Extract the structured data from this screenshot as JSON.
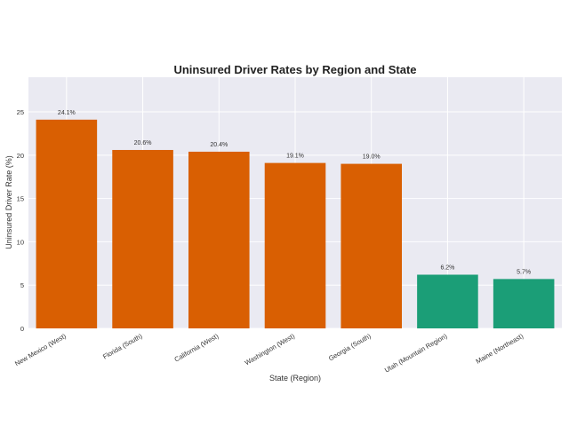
{
  "chart_data": {
    "type": "bar",
    "title": "Uninsured Driver Rates by Region and State",
    "xlabel": "State (Region)",
    "ylabel": "Uninsured Driver Rate (%)",
    "ylim": [
      0,
      29
    ],
    "yticks": [
      0,
      5,
      10,
      15,
      20,
      25
    ],
    "grid": true,
    "categories": [
      "New Mexico (West)",
      "Florida (South)",
      "California (West)",
      "Washington (West)",
      "Georgia (South)",
      "Utah (Mountain Region)",
      "Maine (Northeast)"
    ],
    "values": [
      24.1,
      20.6,
      20.4,
      19.1,
      19.0,
      6.2,
      5.7
    ],
    "data_labels": [
      "24.1%",
      "20.6%",
      "20.4%",
      "19.1%",
      "19.0%",
      "6.2%",
      "5.7%"
    ],
    "bar_colors": [
      "#d95f02",
      "#d95f02",
      "#d95f02",
      "#d95f02",
      "#d95f02",
      "#1b9e77",
      "#1b9e77"
    ]
  },
  "colors": {
    "plot_background": "#eaeaf2",
    "grid": "#ffffff"
  }
}
